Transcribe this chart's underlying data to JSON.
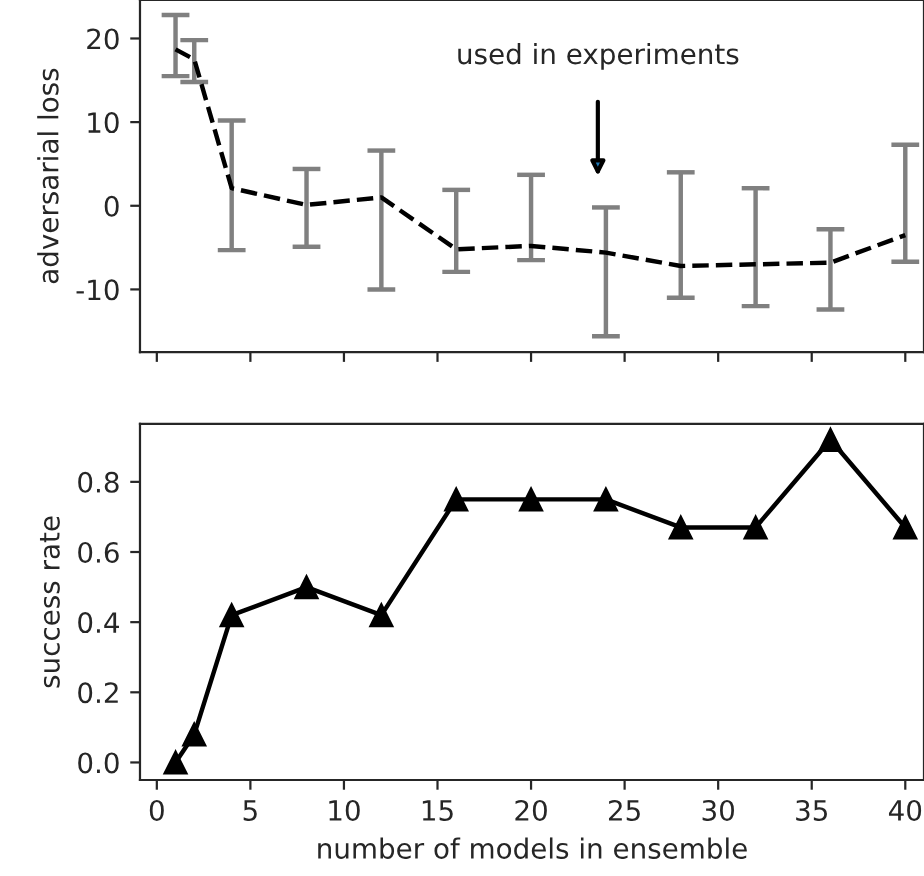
{
  "chart_data": [
    {
      "type": "line",
      "ylabel": "adversarial loss",
      "x": [
        1,
        2,
        4,
        8,
        12,
        16,
        20,
        24,
        28,
        32,
        36,
        40
      ],
      "series": [
        {
          "color": "#000000",
          "values": [
            18.7,
            17.5,
            2.1,
            0.1,
            1.0,
            -5.2,
            -4.8,
            -5.6,
            -7.2,
            -7.0,
            -6.8,
            -3.5
          ],
          "errors": [
            [
              15.5,
              22.8
            ],
            [
              14.8,
              19.8
            ],
            [
              -5.3,
              10.2
            ],
            [
              -4.9,
              4.4
            ],
            [
              -10,
              6.6
            ],
            [
              -7.9,
              1.9
            ],
            [
              -6.5,
              3.7
            ],
            [
              -15.6,
              -0.2
            ],
            [
              -11,
              4.0
            ],
            [
              -12,
              2.1
            ],
            [
              -12.4,
              -2.8
            ],
            [
              -6.7,
              7.3
            ]
          ]
        }
      ],
      "line_style": "dashed",
      "marker": "none",
      "xlim": [
        -0.9,
        41
      ],
      "xticks": [
        {
          "value": 0,
          "label": null
        },
        {
          "value": 5,
          "label": null
        },
        {
          "value": 10,
          "label": null
        },
        {
          "value": 15,
          "label": null
        },
        {
          "value": 20,
          "label": null
        },
        {
          "value": 25,
          "label": null
        },
        {
          "value": 30,
          "label": null
        },
        {
          "value": 35,
          "label": null
        },
        {
          "value": 40,
          "label": null
        }
      ],
      "ylim": [
        -17.5,
        24.6
      ],
      "yticks": [
        -10,
        0,
        10,
        20
      ],
      "tick_labels": "y",
      "grid": false,
      "annotations": [
        "used in experiments"
      ]
    },
    {
      "type": "line",
      "xlabel": "number of models in ensemble",
      "ylabel": "success rate",
      "x": [
        1,
        2,
        4,
        8,
        12,
        16,
        20,
        24,
        28,
        32,
        36,
        40
      ],
      "series": [
        {
          "color": "#000000",
          "values": [
            0,
            0.08,
            0.42,
            0.5,
            0.42,
            0.75,
            0.75,
            0.75,
            0.67,
            0.67,
            0.92,
            0.67
          ]
        }
      ],
      "line_style": "solid",
      "marker": "triangle",
      "xlim": [
        -0.9,
        41
      ],
      "xticks": [
        0,
        5,
        10,
        15,
        20,
        25,
        30,
        35,
        40
      ],
      "ylim": [
        -0.05,
        0.965
      ],
      "yticks": [
        {
          "value": 0,
          "label": "0.0"
        },
        0.2,
        0.4,
        0.6,
        0.8
      ],
      "grid": false
    }
  ]
}
